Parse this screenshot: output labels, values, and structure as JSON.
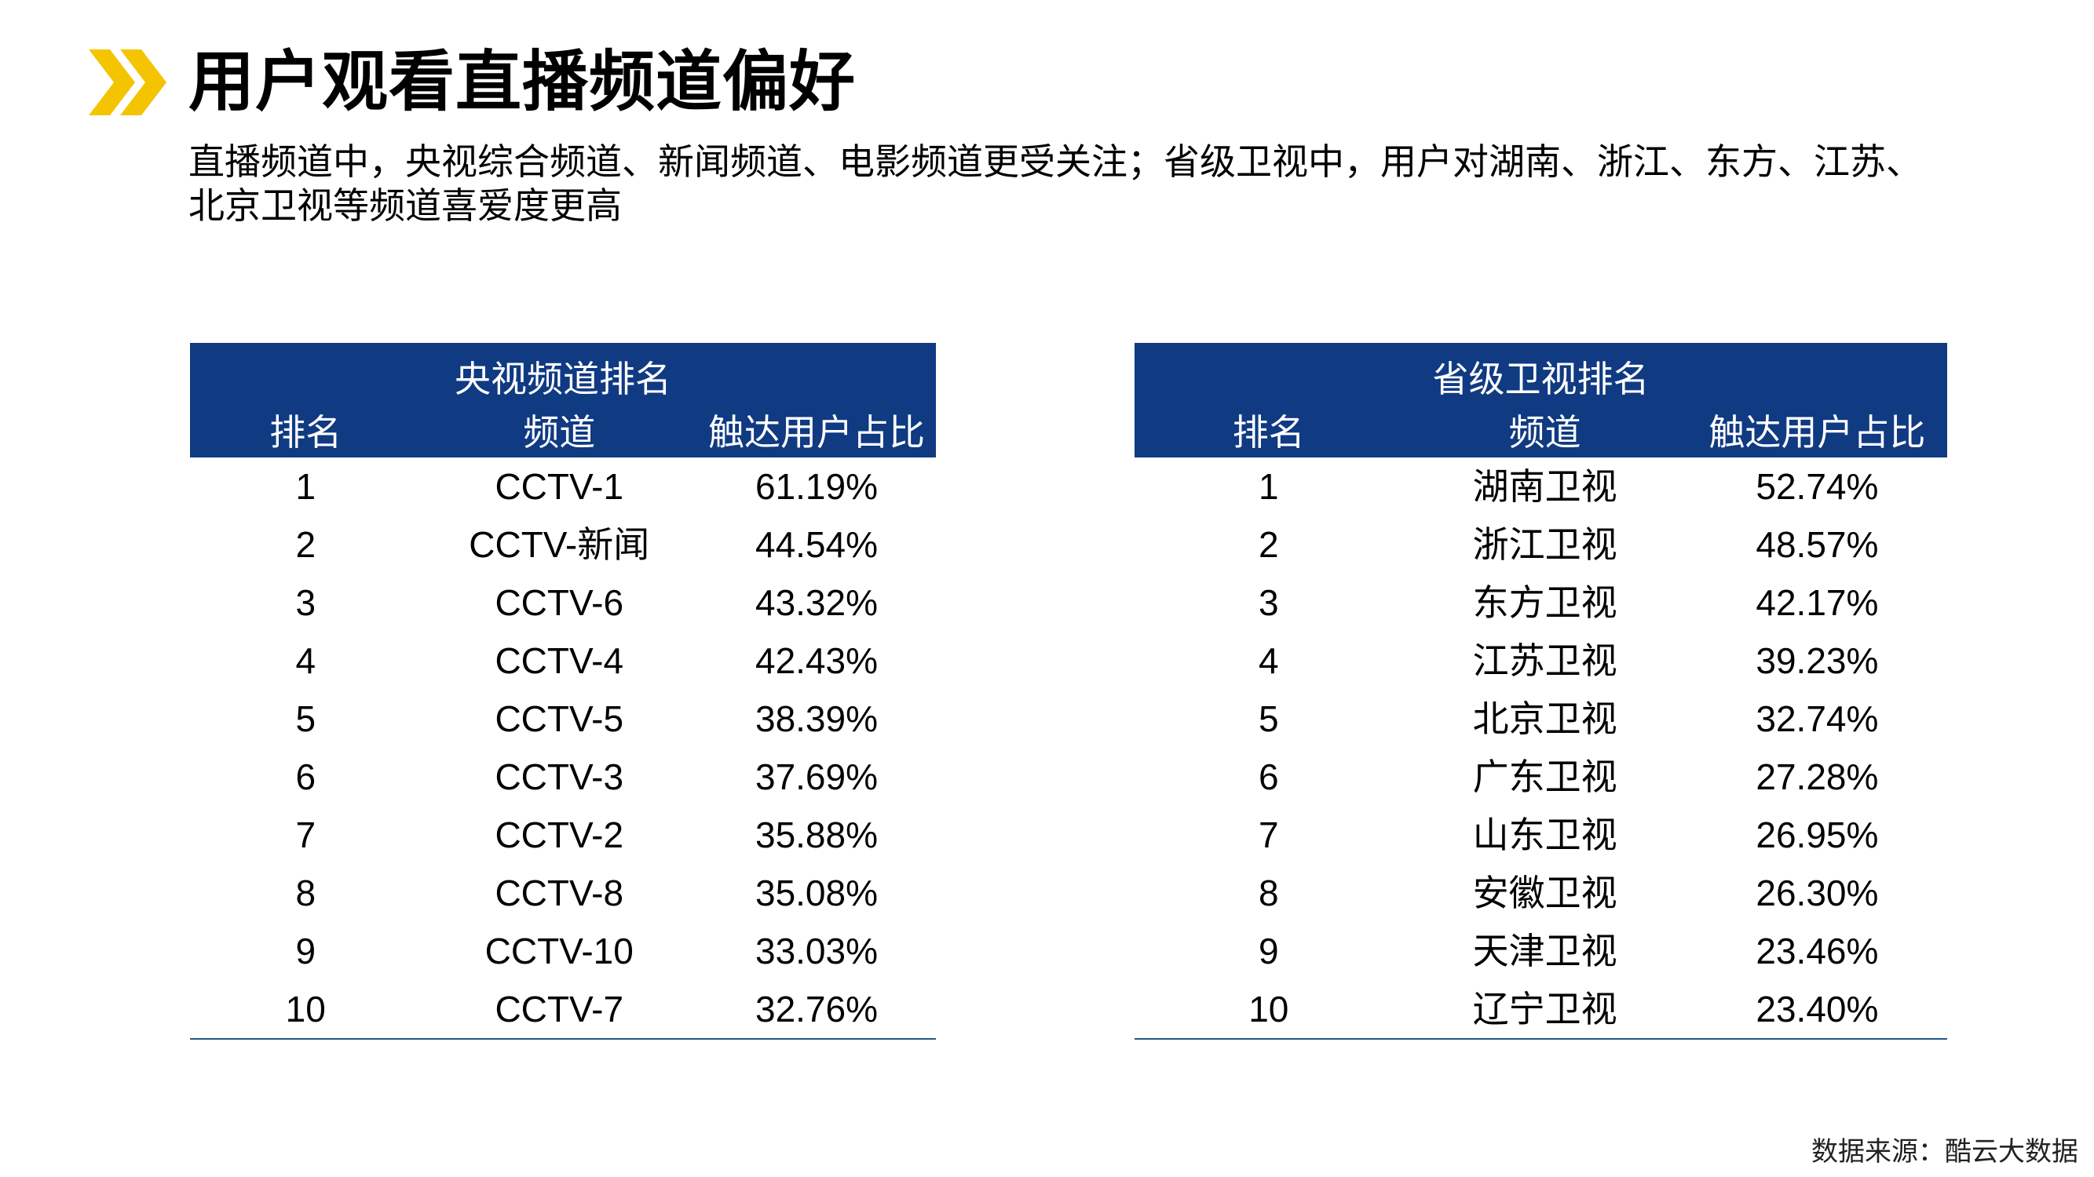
{
  "title": "用户观看直播频道偏好",
  "subtitle": "直播频道中，央视综合频道、新闻频道、电影频道更受关注；省级卫视中，用户对湖南、浙江、东方、江苏、北京卫视等频道喜爱度更高",
  "colors": {
    "header_bg": "#103a82",
    "accent_yellow": "#f5c400",
    "rule": "#1f5a8a"
  },
  "cctv_table": {
    "caption": "央视频道排名",
    "headers": [
      "排名",
      "频道",
      "触达用户占比"
    ],
    "rows": [
      [
        "1",
        "CCTV-1",
        "61.19%"
      ],
      [
        "2",
        "CCTV-新闻",
        "44.54%"
      ],
      [
        "3",
        "CCTV-6",
        "43.32%"
      ],
      [
        "4",
        "CCTV-4",
        "42.43%"
      ],
      [
        "5",
        "CCTV-5",
        "38.39%"
      ],
      [
        "6",
        "CCTV-3",
        "37.69%"
      ],
      [
        "7",
        "CCTV-2",
        "35.88%"
      ],
      [
        "8",
        "CCTV-8",
        "35.08%"
      ],
      [
        "9",
        "CCTV-10",
        "33.03%"
      ],
      [
        "10",
        "CCTV-7",
        "32.76%"
      ]
    ]
  },
  "satellite_table": {
    "caption": "省级卫视排名",
    "headers": [
      "排名",
      "频道",
      "触达用户占比"
    ],
    "rows": [
      [
        "1",
        "湖南卫视",
        "52.74%"
      ],
      [
        "2",
        "浙江卫视",
        "48.57%"
      ],
      [
        "3",
        "东方卫视",
        "42.17%"
      ],
      [
        "4",
        "江苏卫视",
        "39.23%"
      ],
      [
        "5",
        "北京卫视",
        "32.74%"
      ],
      [
        "6",
        "广东卫视",
        "27.28%"
      ],
      [
        "7",
        "山东卫视",
        "26.95%"
      ],
      [
        "8",
        "安徽卫视",
        "26.30%"
      ],
      [
        "9",
        "天津卫视",
        "23.46%"
      ],
      [
        "10",
        "辽宁卫视",
        "23.40%"
      ]
    ]
  },
  "source": "数据来源：酷云大数据"
}
